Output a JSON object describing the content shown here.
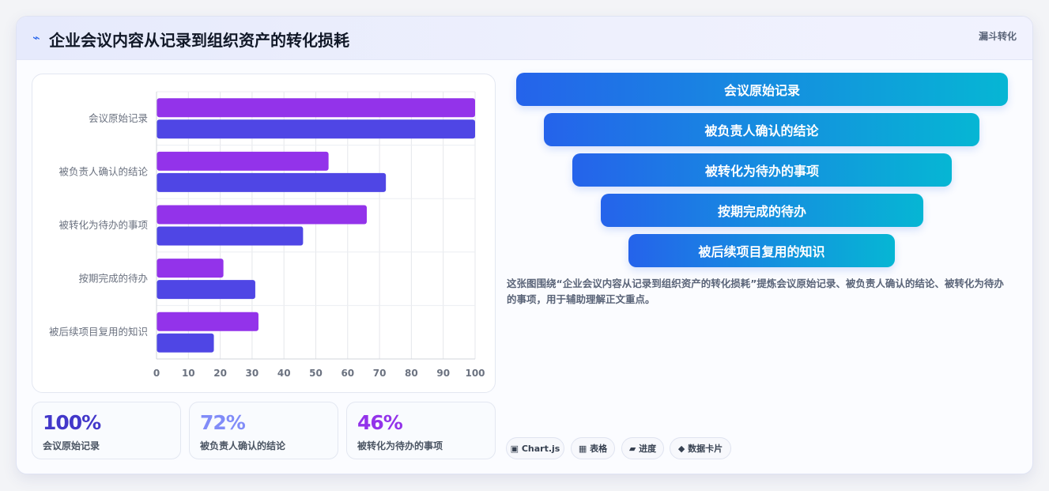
{
  "header": {
    "icon": "⌁",
    "title": "企业会议内容从记录到组织资产的转化损耗",
    "tag": "漏斗转化"
  },
  "chart_data": {
    "type": "bar",
    "orientation": "horizontal",
    "categories": [
      "会议原始记录",
      "被负责人确认的结论",
      "被转化为待办的事项",
      "按期完成的待办",
      "被后续项目复用的知识"
    ],
    "series": [
      {
        "color": "#9333ea",
        "values": [
          100,
          54,
          66,
          21,
          32
        ]
      },
      {
        "color": "#4f46e5",
        "values": [
          100,
          72,
          46,
          31,
          18
        ]
      }
    ],
    "xlim": [
      0,
      100
    ],
    "xticks": [
      0,
      10,
      20,
      30,
      40,
      50,
      60,
      70,
      80,
      90,
      100
    ],
    "grid": true,
    "legend": "none"
  },
  "stats": [
    {
      "value": "100%",
      "label": "会议原始记录",
      "color": "#4338ca"
    },
    {
      "value": "72%",
      "label": "被负责人确认的结论",
      "color": "#818cf8"
    },
    {
      "value": "46%",
      "label": "被转化为待办的事项",
      "color": "#9333ea"
    }
  ],
  "funnel": [
    "会议原始记录",
    "被负责人确认的结论",
    "被转化为待办的事项",
    "按期完成的待办",
    "被后续项目复用的知识"
  ],
  "description": "这张图围绕“企业会议内容从记录到组织资产的转化损耗”提炼会议原始记录、被负责人确认的结论、被转化为待办的事项，用于辅助理解正文重点。",
  "pills": [
    "▣ Chart.js",
    "▦ 表格",
    "▰ 进度",
    "◆ 数据卡片"
  ]
}
